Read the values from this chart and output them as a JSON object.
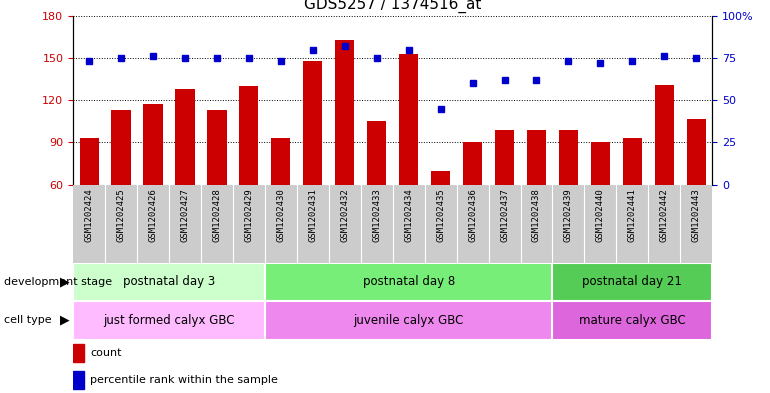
{
  "title": "GDS5257 / 1374516_at",
  "categories": [
    "GSM1202424",
    "GSM1202425",
    "GSM1202426",
    "GSM1202427",
    "GSM1202428",
    "GSM1202429",
    "GSM1202430",
    "GSM1202431",
    "GSM1202432",
    "GSM1202433",
    "GSM1202434",
    "GSM1202435",
    "GSM1202436",
    "GSM1202437",
    "GSM1202438",
    "GSM1202439",
    "GSM1202440",
    "GSM1202441",
    "GSM1202442",
    "GSM1202443"
  ],
  "counts": [
    93,
    113,
    117,
    128,
    113,
    130,
    93,
    148,
    163,
    105,
    153,
    70,
    90,
    99,
    99,
    99,
    90,
    93,
    131,
    107
  ],
  "percentiles": [
    73,
    75,
    76,
    75,
    75,
    75,
    73,
    80,
    82,
    75,
    80,
    45,
    60,
    62,
    62,
    73,
    72,
    73,
    76,
    75
  ],
  "ylim_left": [
    60,
    180
  ],
  "ylim_right": [
    0,
    100
  ],
  "yticks_left": [
    60,
    90,
    120,
    150,
    180
  ],
  "yticks_right": [
    0,
    25,
    50,
    75,
    100
  ],
  "bar_color": "#cc0000",
  "dot_color": "#0000cc",
  "groups": [
    {
      "label": "postnatal day 3",
      "start": 0,
      "end": 6,
      "color": "#ccffcc"
    },
    {
      "label": "postnatal day 8",
      "start": 6,
      "end": 15,
      "color": "#77ee77"
    },
    {
      "label": "postnatal day 21",
      "start": 15,
      "end": 20,
      "color": "#55cc55"
    }
  ],
  "cell_types": [
    {
      "label": "just formed calyx GBC",
      "start": 0,
      "end": 6,
      "color": "#ffbbff"
    },
    {
      "label": "juvenile calyx GBC",
      "start": 6,
      "end": 15,
      "color": "#ee88ee"
    },
    {
      "label": "mature calyx GBC",
      "start": 15,
      "end": 20,
      "color": "#dd66dd"
    }
  ],
  "dev_stage_label": "development stage",
  "cell_type_label": "cell type",
  "legend_count_label": "count",
  "legend_percentile_label": "percentile rank within the sample",
  "tick_color_left": "#cc0000",
  "tick_color_right": "#0000cc",
  "xtick_bg": "#cccccc",
  "xtick_sep_color": "#ffffff"
}
